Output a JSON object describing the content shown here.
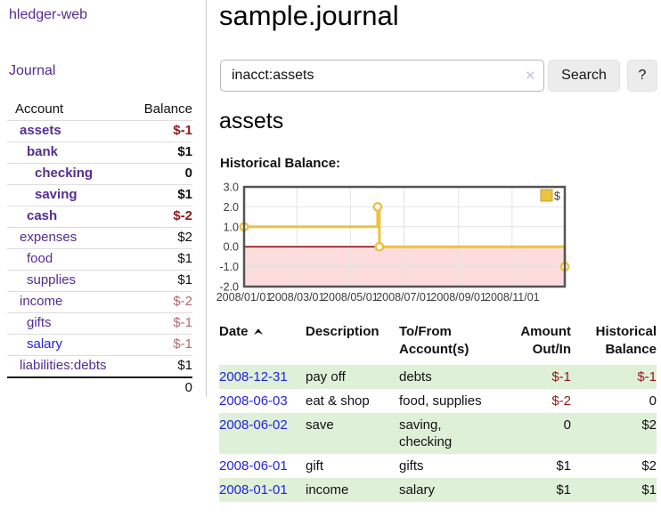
{
  "sidebar": {
    "brand": "hledger-web",
    "nav": {
      "journal": "Journal"
    },
    "accounts": {
      "headers": [
        "Account",
        "Balance"
      ],
      "rows": [
        {
          "name": "assets",
          "depth": 1,
          "bold": true,
          "balance": "$-1"
        },
        {
          "name": "bank",
          "depth": 2,
          "bold": true,
          "balance": "$1"
        },
        {
          "name": "checking",
          "depth": 3,
          "bold": true,
          "balance": "0"
        },
        {
          "name": "saving",
          "depth": 3,
          "bold": true,
          "balance": "$1"
        },
        {
          "name": "cash",
          "depth": 2,
          "bold": true,
          "balance": "$-2"
        },
        {
          "name": "expenses",
          "depth": 1,
          "bold": false,
          "balance": "$2"
        },
        {
          "name": "food",
          "depth": 2,
          "bold": false,
          "balance": "$1"
        },
        {
          "name": "supplies",
          "depth": 2,
          "bold": false,
          "balance": "$1"
        },
        {
          "name": "income",
          "depth": 1,
          "bold": false,
          "balance": "$-2"
        },
        {
          "name": "gifts",
          "depth": 2,
          "bold": false,
          "balance": "$-1"
        },
        {
          "name": "salary",
          "depth": 2,
          "bold": false,
          "balance": "$-1"
        },
        {
          "name": "liabilities:debts",
          "depth": 1,
          "bold": false,
          "balance": "$1"
        }
      ],
      "total": "0"
    }
  },
  "main": {
    "title": "sample.journal",
    "account_heading": "assets",
    "chart_label": "Historical Balance:"
  },
  "search": {
    "query": "inacct:assets",
    "clear_icon": "✕",
    "button": "Search",
    "help": "?"
  },
  "chart_data": {
    "type": "line",
    "step": true,
    "title": "Historical Balance",
    "series": [
      {
        "name": "$",
        "color": "#edc240",
        "points": [
          [
            "2008-01-01",
            1
          ],
          [
            "2008-06-01",
            2
          ],
          [
            "2008-06-03",
            0
          ],
          [
            "2008-12-31",
            -1
          ]
        ]
      }
    ],
    "x_range": [
      "2008-01-01",
      "2008-12-31"
    ],
    "x_ticks": [
      "2008/01/01",
      "2008/03/01",
      "2008/05/01",
      "2008/07/01",
      "2008/09/01",
      "2008/11/01"
    ],
    "y_ticks": [
      3,
      2,
      1,
      0,
      -1,
      -2
    ],
    "ylim": [
      -2,
      3
    ],
    "legend_position": "top-right",
    "grid": true,
    "negative_region_color": "#fcdcdc",
    "zero_line_color": "#8b0000"
  },
  "register": {
    "columns": [
      "Date",
      "Description",
      "To/From Account(s)",
      "Amount Out/In",
      "Historical Balance"
    ],
    "sort": "date-ascending",
    "rows": [
      {
        "date": "2008-12-31",
        "description": "pay off",
        "accounts": "debts",
        "amount": "$-1",
        "balance": "$-1"
      },
      {
        "date": "2008-06-03",
        "description": "eat & shop",
        "accounts": "food, supplies",
        "amount": "$-2",
        "balance": "0"
      },
      {
        "date": "2008-06-02",
        "description": "save",
        "accounts": "saving, checking",
        "amount": "0",
        "balance": "$2"
      },
      {
        "date": "2008-06-01",
        "description": "gift",
        "accounts": "gifts",
        "amount": "$1",
        "balance": "$2"
      },
      {
        "date": "2008-01-01",
        "description": "income",
        "accounts": "salary",
        "amount": "$1",
        "balance": "$1"
      }
    ]
  }
}
